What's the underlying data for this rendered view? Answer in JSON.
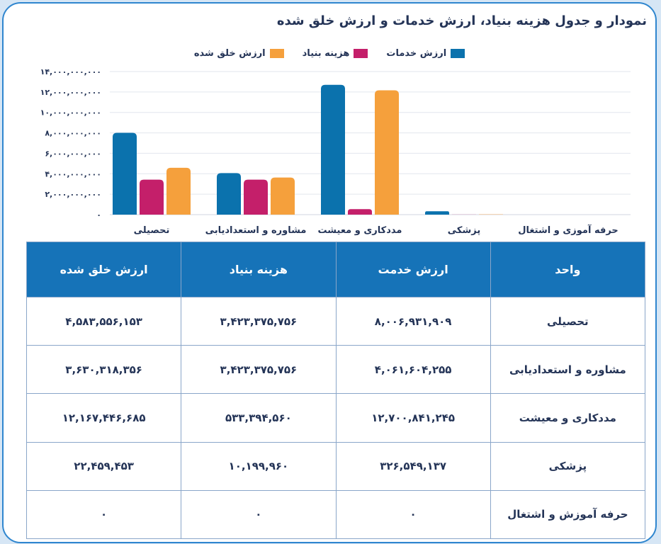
{
  "title": "نمودار و جدول هزینه بنیاد، ارزش خدمات و ارزش خلق شده",
  "legend": [
    {
      "label": "ارزش خدمات",
      "color": "#0b72ad"
    },
    {
      "label": "هزینه بنیاد",
      "color": "#c41f6a"
    },
    {
      "label": "ارزش خلق شده",
      "color": "#f5a03c"
    }
  ],
  "chart_data": {
    "type": "bar",
    "categories": [
      "تحصیلی",
      "مشاوره و استعدادیابی",
      "مددکاری و معیشت",
      "پزشکی",
      "حرفه آموزی و اشتغال"
    ],
    "series": [
      {
        "name": "ارزش خدمات",
        "color": "#0b72ad",
        "values": [
          8006931909,
          4061604255,
          12700841245,
          326549137,
          0
        ]
      },
      {
        "name": "هزینه بنیاد",
        "color": "#c41f6a",
        "values": [
          3423375756,
          3423375756,
          533394560,
          10199960,
          0
        ]
      },
      {
        "name": "ارزش خلق شده",
        "color": "#f5a03c",
        "values": [
          4583556153,
          3630318356,
          12167446685,
          22459453,
          0
        ]
      }
    ],
    "ylim": [
      0,
      14000000000
    ],
    "yticks": [
      "۰",
      "۲,۰۰۰,۰۰۰,۰۰۰",
      "۴,۰۰۰,۰۰۰,۰۰۰",
      "۶,۰۰۰,۰۰۰,۰۰۰",
      "۸,۰۰۰,۰۰۰,۰۰۰",
      "۱۰,۰۰۰,۰۰۰,۰۰۰",
      "۱۲,۰۰۰,۰۰۰,۰۰۰",
      "۱۴,۰۰۰,۰۰۰,۰۰۰"
    ],
    "ytick_values": [
      0,
      2000000000,
      4000000000,
      6000000000,
      8000000000,
      10000000000,
      12000000000,
      14000000000
    ],
    "grid": true,
    "legend_position": "top"
  },
  "table": {
    "headers": [
      "واحد",
      "ارزش خدمت",
      "هزینه بنیاد",
      "ارزش خلق شده"
    ],
    "rows": [
      [
        "تحصیلی",
        "۸,۰۰۶,۹۳۱,۹۰۹",
        "۳,۴۲۳,۳۷۵,۷۵۶",
        "۴,۵۸۳,۵۵۶,۱۵۳"
      ],
      [
        "مشاوره و استعدادیابی",
        "۴,۰۶۱,۶۰۴,۲۵۵",
        "۳,۴۲۳,۳۷۵,۷۵۶",
        "۳,۶۳۰,۳۱۸,۳۵۶"
      ],
      [
        "مددکاری و معیشت",
        "۱۲,۷۰۰,۸۴۱,۲۴۵",
        "۵۳۳,۳۹۴,۵۶۰",
        "۱۲,۱۶۷,۴۴۶,۶۸۵"
      ],
      [
        "پزشکی",
        "۳۲۶,۵۴۹,۱۳۷",
        "۱۰,۱۹۹,۹۶۰",
        "۲۲,۴۵۹,۴۵۳"
      ],
      [
        "حرفه آموزش و اشتغال",
        "۰",
        "۰",
        "۰"
      ]
    ]
  }
}
